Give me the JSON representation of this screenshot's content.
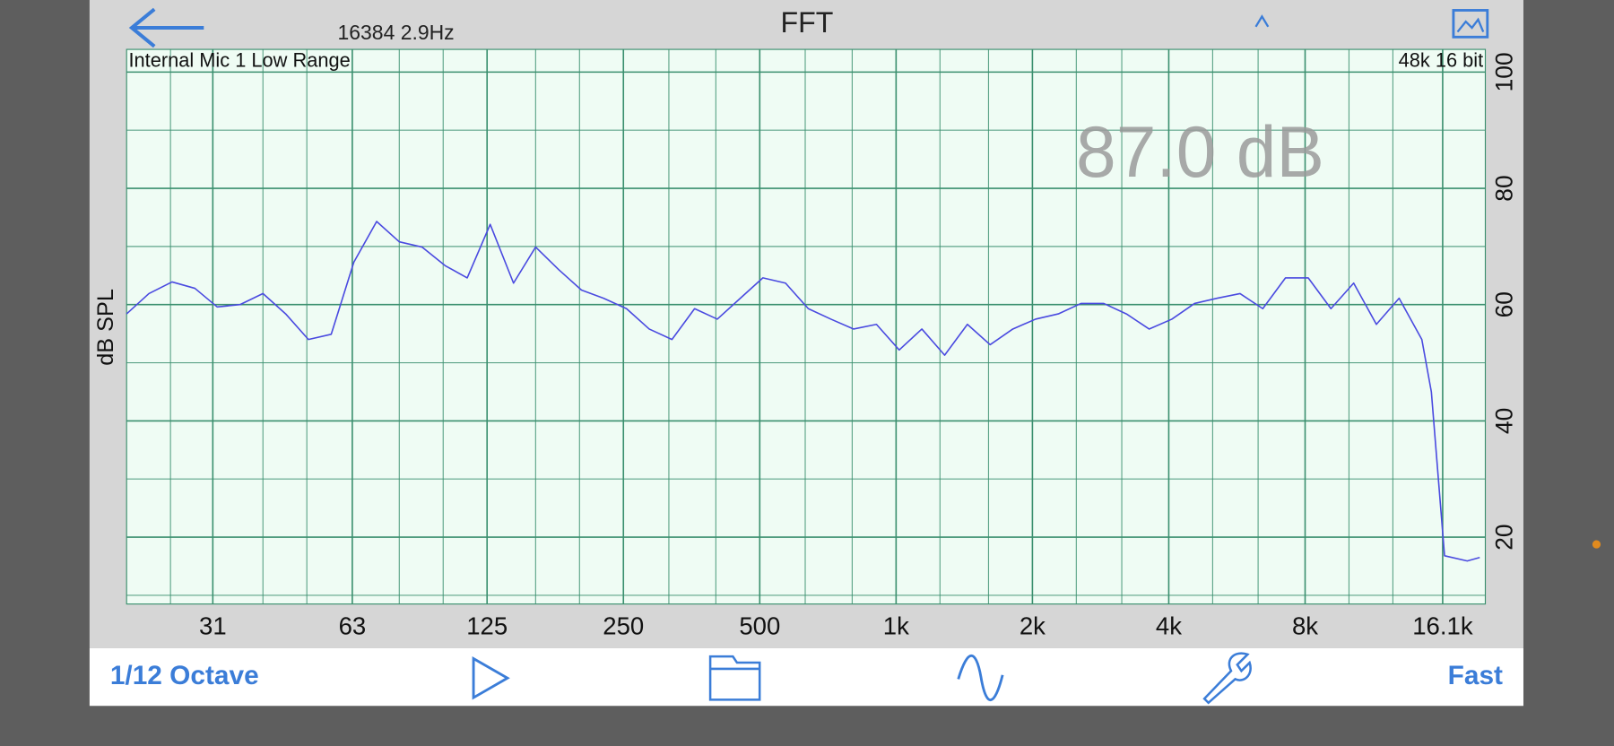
{
  "header": {
    "info": "16384  2.9Hz",
    "title": "FFT"
  },
  "toolbar": {
    "left": "1/12 Octave",
    "right": "Fast"
  },
  "chart_data": {
    "type": "line",
    "input_label": "Internal Mic 1 Low Range",
    "format_label": "48k 16 bit",
    "level_readout": "87.0 dB",
    "ylabel": "dB SPL",
    "yaxis_side": "right",
    "xscale": "log",
    "grid": true,
    "color": "#4a4ae0",
    "x": [
      20,
      22.4,
      25.2,
      28.3,
      31.7,
      35.6,
      40,
      44.9,
      50.4,
      56.6,
      63.5,
      71.3,
      80,
      89.8,
      101,
      113,
      127,
      143,
      160,
      180,
      202,
      226,
      254,
      285,
      320,
      359,
      403,
      453,
      508,
      570,
      640,
      718,
      806,
      905,
      1016,
      1140,
      1280,
      1437,
      1613,
      1810,
      2032,
      2281,
      2560,
      2874,
      3225,
      3620,
      4064,
      4561,
      5120,
      5747,
      6451,
      7241,
      8127,
      9123,
      10240,
      11494,
      12902,
      14482,
      15200,
      16255,
      18245,
      19440
    ],
    "values": [
      58.4,
      61.9,
      63.9,
      62.8,
      59.6,
      60.0,
      61.9,
      58.4,
      54.0,
      54.9,
      67.3,
      74.3,
      70.8,
      69.9,
      66.7,
      64.6,
      73.8,
      63.7,
      69.9,
      66.0,
      62.5,
      61.1,
      59.3,
      55.8,
      54.0,
      59.3,
      57.5,
      61.1,
      64.6,
      63.7,
      59.3,
      57.5,
      55.8,
      56.6,
      52.2,
      55.8,
      51.3,
      56.6,
      53.1,
      55.8,
      57.5,
      58.4,
      60.2,
      60.2,
      58.4,
      55.8,
      57.5,
      60.2,
      61.1,
      61.9,
      59.3,
      64.6,
      64.6,
      59.3,
      63.7,
      56.6,
      61.1,
      54.0,
      45,
      16.8,
      15.9,
      16.5
    ],
    "xlim": [
      20,
      20000
    ],
    "ylim": [
      8.5,
      103.9
    ],
    "xticks": [
      31,
      63,
      125,
      250,
      500,
      {
        "value": 1000,
        "label": "1k"
      },
      {
        "value": 2000,
        "label": "2k"
      },
      {
        "value": 4000,
        "label": "4k"
      },
      {
        "value": 8000,
        "label": "8k"
      },
      {
        "value": 16100,
        "label": "16.1k"
      }
    ],
    "xminorticks": [
      25,
      40,
      50,
      80,
      100,
      160,
      200,
      315,
      400,
      630,
      800,
      1250,
      1600,
      2500,
      3150,
      5000,
      6300,
      10000,
      12500
    ],
    "yticks": [
      20,
      40,
      60,
      80,
      100
    ],
    "yminorticks": [
      10,
      30,
      50,
      70,
      90
    ]
  }
}
